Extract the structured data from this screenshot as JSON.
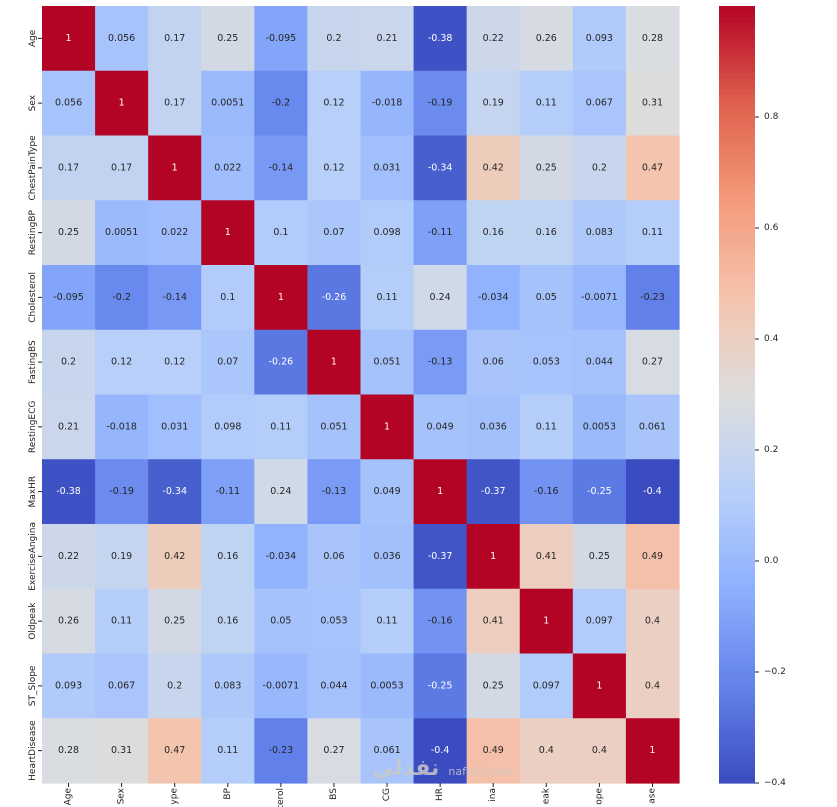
{
  "chart_data": {
    "type": "heatmap",
    "x_tick_labels": [
      "Age",
      "Sex",
      "ype",
      "BP",
      "terol",
      "BS",
      "CG",
      "HR",
      "ina",
      "eak",
      "ope",
      "ase"
    ],
    "y_tick_labels": [
      "Age",
      "Sex",
      "ChestPainType",
      "RestingBP",
      "Cholesterol",
      "FastingBS",
      "RestingECG",
      "MaxHR",
      "ExerciseAngina",
      "Oldpeak",
      "ST_Slope",
      "HeartDisease"
    ],
    "values": [
      [
        1,
        0.056,
        0.17,
        0.25,
        -0.095,
        0.2,
        0.21,
        -0.38,
        0.22,
        0.26,
        0.093,
        0.28
      ],
      [
        0.056,
        1,
        0.17,
        0.0051,
        -0.2,
        0.12,
        -0.018,
        -0.19,
        0.19,
        0.11,
        0.067,
        0.31
      ],
      [
        0.17,
        0.17,
        1,
        0.022,
        -0.14,
        0.12,
        0.031,
        -0.34,
        0.42,
        0.25,
        0.2,
        0.47
      ],
      [
        0.25,
        0.0051,
        0.022,
        1,
        0.1,
        0.07,
        0.098,
        -0.11,
        0.16,
        0.16,
        0.083,
        0.11
      ],
      [
        -0.095,
        -0.2,
        -0.14,
        0.1,
        1,
        -0.26,
        0.11,
        0.24,
        -0.034,
        0.05,
        -0.0071,
        -0.23
      ],
      [
        0.2,
        0.12,
        0.12,
        0.07,
        -0.26,
        1,
        0.051,
        -0.13,
        0.06,
        0.053,
        0.044,
        0.27
      ],
      [
        0.21,
        -0.018,
        0.031,
        0.098,
        0.11,
        0.051,
        1,
        0.049,
        0.036,
        0.11,
        0.0053,
        0.061
      ],
      [
        -0.38,
        -0.19,
        -0.34,
        -0.11,
        0.24,
        -0.13,
        0.049,
        1,
        -0.37,
        -0.16,
        -0.25,
        -0.4
      ],
      [
        0.22,
        0.19,
        0.42,
        0.16,
        -0.034,
        0.06,
        0.036,
        -0.37,
        1,
        0.41,
        0.25,
        0.49
      ],
      [
        0.26,
        0.11,
        0.25,
        0.16,
        0.05,
        0.053,
        0.11,
        -0.16,
        0.41,
        1,
        0.097,
        0.4
      ],
      [
        0.093,
        0.067,
        0.2,
        0.083,
        -0.0071,
        0.044,
        0.0053,
        -0.25,
        0.25,
        0.097,
        1,
        0.4
      ],
      [
        0.28,
        0.31,
        0.47,
        0.11,
        -0.23,
        0.27,
        0.061,
        -0.4,
        0.49,
        0.4,
        0.4,
        1
      ]
    ],
    "annotation_labels": [
      [
        "1",
        "0.056",
        "0.17",
        "0.25",
        "-0.095",
        "0.2",
        "0.21",
        "-0.38",
        "0.22",
        "0.26",
        "0.093",
        "0.28"
      ],
      [
        "0.056",
        "1",
        "0.17",
        "0.0051",
        "-0.2",
        "0.12",
        "-0.018",
        "-0.19",
        "0.19",
        "0.11",
        "0.067",
        "0.31"
      ],
      [
        "0.17",
        "0.17",
        "1",
        "0.022",
        "-0.14",
        "0.12",
        "0.031",
        "-0.34",
        "0.42",
        "0.25",
        "0.2",
        "0.47"
      ],
      [
        "0.25",
        "0.0051",
        "0.022",
        "1",
        "0.1",
        "0.07",
        "0.098",
        "-0.11",
        "0.16",
        "0.16",
        "0.083",
        "0.11"
      ],
      [
        "-0.095",
        "-0.2",
        "-0.14",
        "0.1",
        "1",
        "-0.26",
        "0.11",
        "0.24",
        "-0.034",
        "0.05",
        "-0.0071",
        "-0.23"
      ],
      [
        "0.2",
        "0.12",
        "0.12",
        "0.07",
        "-0.26",
        "1",
        "0.051",
        "-0.13",
        "0.06",
        "0.053",
        "0.044",
        "0.27"
      ],
      [
        "0.21",
        "-0.018",
        "0.031",
        "0.098",
        "0.11",
        "0.051",
        "1",
        "0.049",
        "0.036",
        "0.11",
        "0.0053",
        "0.061"
      ],
      [
        "-0.38",
        "-0.19",
        "-0.34",
        "-0.11",
        "0.24",
        "-0.13",
        "0.049",
        "1",
        "-0.37",
        "-0.16",
        "-0.25",
        "-0.4"
      ],
      [
        "0.22",
        "0.19",
        "0.42",
        "0.16",
        "-0.034",
        "0.06",
        "0.036",
        "-0.37",
        "1",
        "0.41",
        "0.25",
        "0.49"
      ],
      [
        "0.26",
        "0.11",
        "0.25",
        "0.16",
        "0.05",
        "0.053",
        "0.11",
        "-0.16",
        "0.41",
        "1",
        "0.097",
        "0.4"
      ],
      [
        "0.093",
        "0.067",
        "0.2",
        "0.083",
        "-0.0071",
        "0.044",
        "0.0053",
        "-0.25",
        "0.25",
        "0.097",
        "1",
        "0.4"
      ],
      [
        "0.28",
        "0.31",
        "0.47",
        "0.11",
        "-0.23",
        "0.27",
        "0.061",
        "-0.4",
        "0.49",
        "0.4",
        "0.4",
        "1"
      ]
    ],
    "colormap": "coolwarm",
    "colorbar": {
      "range": [
        -0.4,
        1
      ],
      "ticks": [
        -0.4,
        -0.2,
        0.0,
        0.2,
        0.4,
        0.6,
        0.8
      ],
      "tick_labels": [
        "−0.4",
        "−0.2",
        "0.0",
        "0.2",
        "0.4",
        "0.6",
        "0.8"
      ]
    },
    "annotations_shown": true
  },
  "watermark": {
    "logo_text": "نفذلي",
    "url_text": "nafezly.com"
  }
}
